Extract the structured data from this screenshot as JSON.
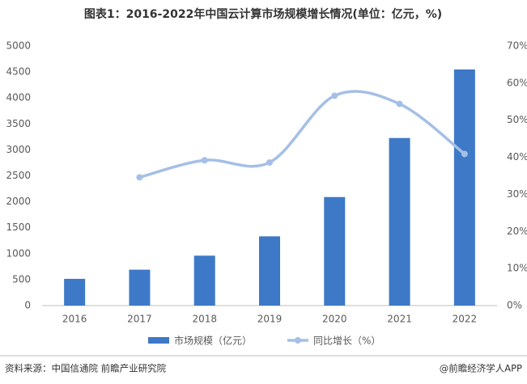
{
  "chart_data": {
    "type": "bar-line",
    "title": "图表1：2016-2022年中国云计算市场规模增长情况(单位：亿元，%)",
    "categories": [
      "2016",
      "2017",
      "2018",
      "2019",
      "2020",
      "2021",
      "2022"
    ],
    "series": [
      {
        "name": "市场规模（亿元）",
        "type": "bar",
        "color": "#3d79c7",
        "values": [
          515,
          692,
          962,
          1334,
          2091,
          3229,
          4550
        ]
      },
      {
        "name": "同比增长（%）",
        "type": "line",
        "axis": "y2",
        "color": "#a5bfe6",
        "values": [
          null,
          34.6,
          39.2,
          38.6,
          56.6,
          54.4,
          40.9
        ]
      }
    ],
    "ylim": [
      0,
      5000
    ],
    "yticks": [
      0,
      500,
      1000,
      1500,
      2000,
      2500,
      3000,
      3500,
      4000,
      4500,
      5000
    ],
    "y2lim": [
      0,
      70
    ],
    "y2ticks": [
      {
        "value": 0,
        "label": "0%"
      },
      {
        "value": 10,
        "label": "10%"
      },
      {
        "value": 20,
        "label": "20%"
      },
      {
        "value": 30,
        "label": "30%"
      },
      {
        "value": 40,
        "label": "40%"
      },
      {
        "value": 50,
        "label": "50%"
      },
      {
        "value": 60,
        "label": "60%"
      },
      {
        "value": 70,
        "label": "70%"
      }
    ],
    "grid": false,
    "legend": "bottom",
    "source": "资料来源：中国信通院 前瞻产业研究院",
    "credit": "@前瞻经济学人APP"
  }
}
